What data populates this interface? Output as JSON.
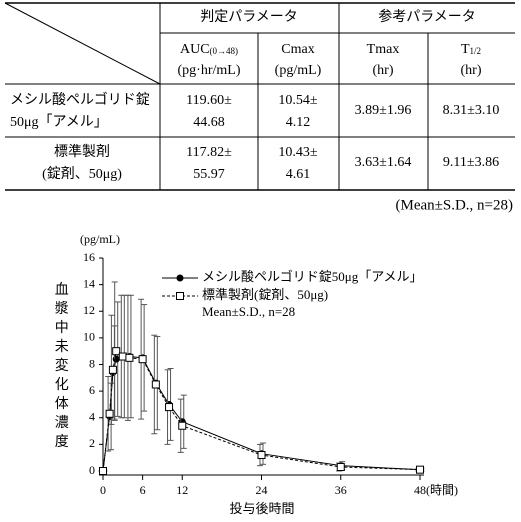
{
  "table": {
    "header": [
      "判定パラメータ",
      "参考パラメータ"
    ],
    "columns": [
      {
        "main": "AUC",
        "sub": "(0→48)",
        "unit": "(pg·hr/mL)"
      },
      {
        "main": "Cmax",
        "sub": "",
        "unit": "(pg/mL)"
      },
      {
        "main": "Tmax",
        "sub": "",
        "unit": "(hr)"
      },
      {
        "main": "T",
        "sub": "1/2",
        "unit": "(hr)"
      }
    ],
    "rows": [
      {
        "name": [
          "メシル酸ペルゴリド錠",
          "50μg「アメル」"
        ],
        "cells": [
          [
            "119.60±",
            "44.68"
          ],
          [
            "10.54±",
            "4.12"
          ],
          [
            "3.89±1.96"
          ],
          [
            "8.31±3.10"
          ]
        ]
      },
      {
        "name": [
          "標準製剤",
          "(錠剤、50μg)"
        ],
        "cells": [
          [
            "117.82±",
            "55.97"
          ],
          [
            "10.43±",
            "4.61"
          ],
          [
            "3.63±1.64"
          ],
          [
            "9.11±3.86"
          ]
        ]
      }
    ]
  },
  "note": "(Mean±S.D., n=28)",
  "chart_data": {
    "type": "line",
    "y_unit": "(pg/mL)",
    "y_label": "血漿中未変化体濃度",
    "x_label": "投与後時間",
    "legend_note": "Mean±S.D., n=28",
    "x": [
      0,
      1,
      1.5,
      2,
      3,
      4,
      6,
      8,
      10,
      12,
      24,
      36,
      48
    ],
    "series": [
      {
        "name": "メシル酸ペルゴリド錠50μg「アメル」",
        "color": "#000000",
        "line_style": "solid",
        "marker": "circle",
        "values": [
          0,
          4.1,
          7.4,
          8.4,
          8.6,
          8.6,
          8.5,
          6.6,
          5.0,
          3.7,
          1.3,
          0.4,
          0.1
        ],
        "errors": [
          0,
          2.5,
          3.5,
          4.3,
          4.6,
          4.6,
          4.0,
          3.5,
          2.7,
          2.0,
          0.8,
          0.3,
          0.1
        ]
      },
      {
        "name": "標準製剤(錠剤、50μg)",
        "color": "#000000",
        "line_style": "dashed",
        "marker": "square",
        "values": [
          0,
          4.3,
          7.6,
          9.0,
          8.6,
          8.5,
          8.4,
          6.5,
          4.8,
          3.4,
          1.2,
          0.3,
          0.1
        ],
        "errors": [
          0,
          2.8,
          4.1,
          5.2,
          4.6,
          4.7,
          4.5,
          3.7,
          2.8,
          2.0,
          0.8,
          0.3,
          0.1
        ]
      }
    ],
    "xlim": [
      0,
      48
    ],
    "ylim": [
      0,
      16
    ],
    "xticks": [
      0,
      6,
      12,
      24,
      36,
      {
        "value": 48,
        "label": "48(時間)"
      }
    ],
    "yticks": [
      0,
      2,
      4,
      6,
      8,
      10,
      12,
      14,
      16
    ]
  }
}
